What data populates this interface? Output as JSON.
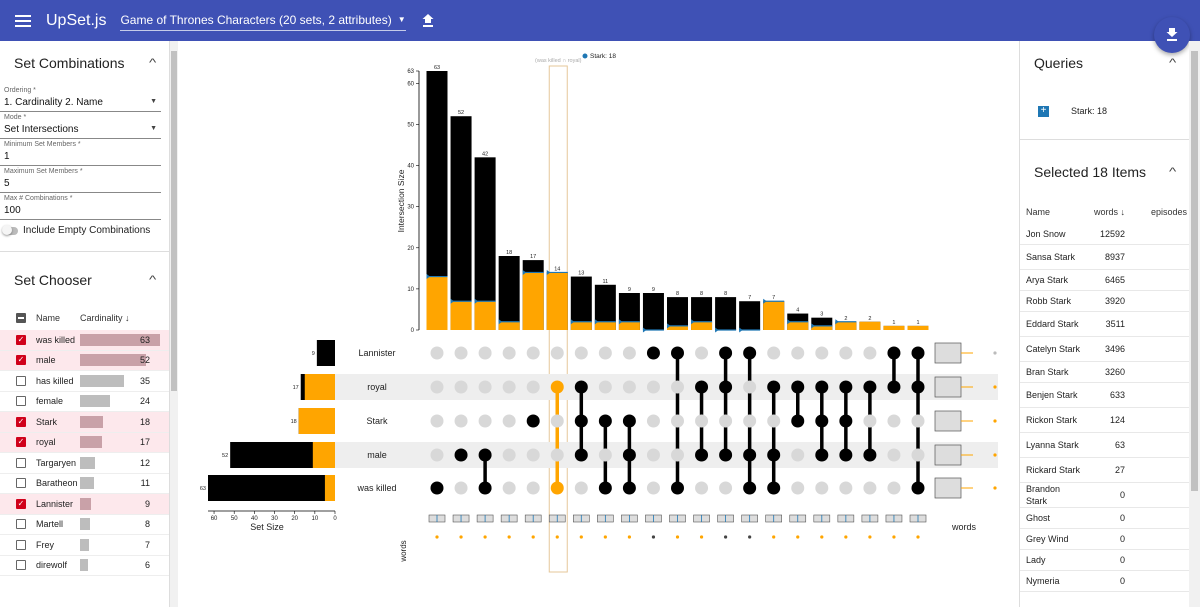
{
  "app": {
    "title": "UpSet.js",
    "dataset": "Game of Thrones Characters (20 sets, 2 attributes)"
  },
  "set_combinations": {
    "header": "Set Combinations",
    "ordering_label": "Ordering *",
    "ordering_value": "1. Cardinality 2. Name",
    "mode_label": "Mode *",
    "mode_value": "Set Intersections",
    "min_label": "Minimum Set Members *",
    "min_value": "1",
    "max_label": "Maximum Set Members *",
    "max_value": "5",
    "maxcomb_label": "Max # Combinations *",
    "maxcomb_value": "100",
    "empty_label": "Include Empty Combinations"
  },
  "set_chooser": {
    "header": "Set Chooser",
    "col_name": "Name",
    "col_card": "Cardinality ↓",
    "rows": [
      {
        "name": "was killed",
        "value": 63,
        "selected": true
      },
      {
        "name": "male",
        "value": 52,
        "selected": true
      },
      {
        "name": "has killed",
        "value": 35,
        "selected": false
      },
      {
        "name": "female",
        "value": 24,
        "selected": false
      },
      {
        "name": "Stark",
        "value": 18,
        "selected": true
      },
      {
        "name": "royal",
        "value": 17,
        "selected": true
      },
      {
        "name": "Targaryen",
        "value": 12,
        "selected": false
      },
      {
        "name": "Baratheon",
        "value": 11,
        "selected": false
      },
      {
        "name": "Lannister",
        "value": 9,
        "selected": true
      },
      {
        "name": "Martell",
        "value": 8,
        "selected": false
      },
      {
        "name": "Frey",
        "value": 7,
        "selected": false
      },
      {
        "name": "direwolf",
        "value": 6,
        "selected": false
      }
    ]
  },
  "queries": {
    "header": "Queries",
    "items": [
      {
        "label": "Stark: 18"
      }
    ]
  },
  "selected_items": {
    "header": "Selected 18 Items",
    "col_name": "Name",
    "col_words": "words ↓",
    "col_episodes": "episodes",
    "rows": [
      {
        "name": "Jon Snow",
        "words": "12592"
      },
      {
        "name": "Sansa Stark",
        "words": "8937"
      },
      {
        "name": "Arya Stark",
        "words": "6465"
      },
      {
        "name": "Robb Stark",
        "words": "3920"
      },
      {
        "name": "Eddard Stark",
        "words": "3511"
      },
      {
        "name": "Catelyn Stark",
        "words": "3496"
      },
      {
        "name": "Bran Stark",
        "words": "3260"
      },
      {
        "name": "Benjen Stark",
        "words": "633"
      },
      {
        "name": "Rickon Stark",
        "words": "124"
      },
      {
        "name": "Lyanna Stark",
        "words": "63"
      },
      {
        "name": "Rickard Stark",
        "words": "27"
      },
      {
        "name": "Brandon Stark",
        "words": "0"
      },
      {
        "name": "Ghost",
        "words": "0"
      },
      {
        "name": "Grey Wind",
        "words": "0"
      },
      {
        "name": "Lady",
        "words": "0"
      },
      {
        "name": "Nymeria",
        "words": "0"
      }
    ]
  },
  "chart_data": {
    "type": "bar",
    "ylabel": "Intersection Size",
    "xlabel": "Set Size",
    "ylim": [
      0,
      63
    ],
    "yticks": [
      0,
      10,
      20,
      30,
      40,
      50,
      60,
      63
    ],
    "set_size_ticks": [
      60,
      50,
      40,
      30,
      20,
      10,
      0
    ],
    "sets": [
      "Lannister",
      "royal",
      "Stark",
      "male",
      "was killed"
    ],
    "set_sizes": [
      9,
      17,
      18,
      52,
      63
    ],
    "set_selected": [
      0,
      15,
      18,
      11,
      5
    ],
    "combinations": [
      {
        "sets": [
          "was killed"
        ],
        "total": 63,
        "selected": 13
      },
      {
        "sets": [
          "male"
        ],
        "total": 52,
        "selected": 7
      },
      {
        "sets": [
          "male",
          "was killed"
        ],
        "total": 42,
        "selected": 7
      },
      {
        "sets": [],
        "total": 18,
        "selected": 2
      },
      {
        "sets": [
          "Stark"
        ],
        "total": 17,
        "selected": 14
      },
      {
        "sets": [
          "royal",
          "was killed"
        ],
        "total": 14,
        "selected": 14
      },
      {
        "sets": [
          "male",
          "Stark",
          "royal"
        ],
        "total": 13,
        "selected": 2
      },
      {
        "sets": [
          "was killed",
          "Stark"
        ],
        "total": 11,
        "selected": 2
      },
      {
        "sets": [
          "male",
          "Stark",
          "was killed"
        ],
        "total": 9,
        "selected": 2
      },
      {
        "sets": [
          "Lannister"
        ],
        "total": 9,
        "selected": 0
      },
      {
        "sets": [
          "Lannister",
          "was killed"
        ],
        "total": 8,
        "selected": 1
      },
      {
        "sets": [
          "royal",
          "male"
        ],
        "total": 8,
        "selected": 2
      },
      {
        "sets": [
          "Lannister",
          "royal",
          "male"
        ],
        "total": 8,
        "selected": 0
      },
      {
        "sets": [
          "Lannister",
          "was killed",
          "male"
        ],
        "total": 7,
        "selected": 0
      },
      {
        "sets": [
          "royal",
          "male",
          "was killed"
        ],
        "total": 7,
        "selected": 7
      },
      {
        "sets": [
          "royal",
          "Stark"
        ],
        "total": 4,
        "selected": 2
      },
      {
        "sets": [
          "royal",
          "Stark",
          "male"
        ],
        "total": 3,
        "selected": 1
      },
      {
        "sets": [
          "royal",
          "male",
          "Stark"
        ],
        "total": 2,
        "selected": 2
      },
      {
        "sets": [
          "royal",
          "male"
        ],
        "total": 2,
        "selected": 2
      },
      {
        "sets": [
          "Lannister",
          "royal"
        ],
        "total": 1,
        "selected": 1
      },
      {
        "sets": [
          "Lannister",
          "royal",
          "was killed"
        ],
        "total": 1,
        "selected": 1
      }
    ],
    "highlight_label": "(was killed ∩ royal)",
    "legend": "Stark: 18",
    "attribute_label": "words",
    "colors": {
      "bar": "#000000",
      "selected": "#ffa500",
      "query": "#1f77b4",
      "dot_off": "#d8d8d8",
      "dot_on": "#000000",
      "row_band": "#eeeeee"
    }
  }
}
